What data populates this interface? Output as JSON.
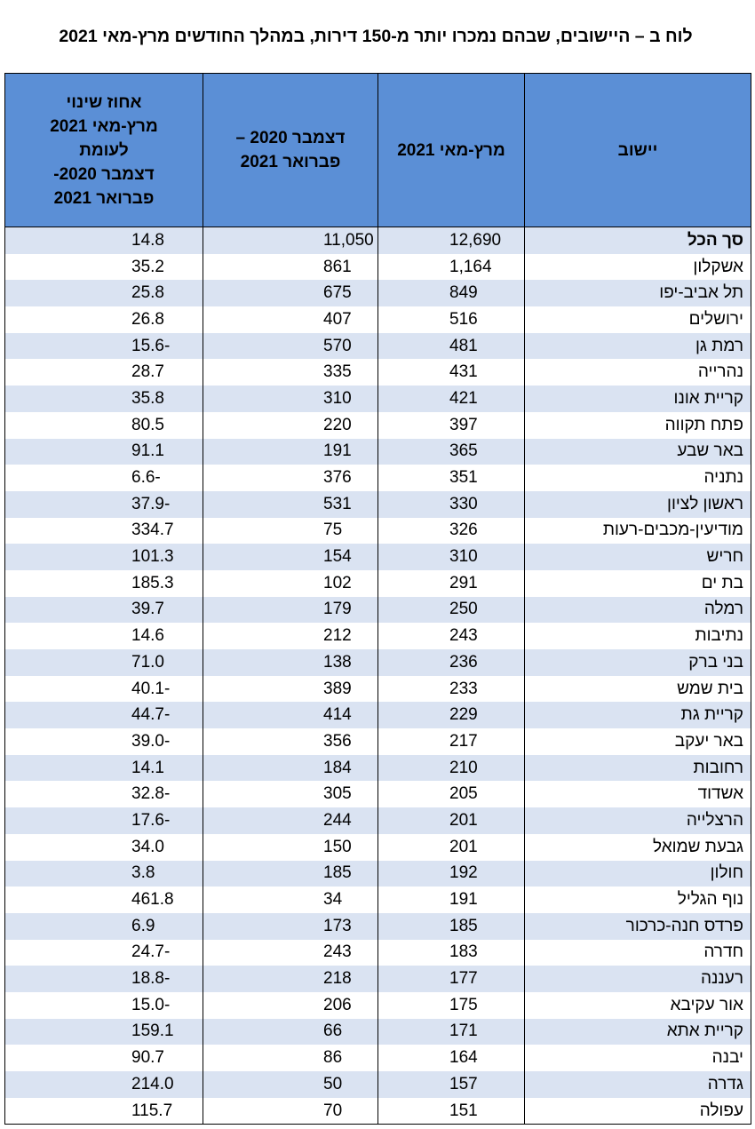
{
  "title": "לוח ב – היישובים, שבהם נמכרו יותר מ-150 דירות, במהלך החודשים מרץ-מאי 2021",
  "table": {
    "headers": [
      [
        "יישוב"
      ],
      [
        "מרץ-מאי 2021"
      ],
      [
        "דצמבר 2020 –",
        "פברואר 2021"
      ],
      [
        "אחוז שינוי",
        "מרץ-מאי 2021",
        "לעומת",
        "דצמבר 2020-",
        "פברואר 2021"
      ]
    ],
    "rows": [
      [
        "סך הכל",
        "12,690",
        "11,050",
        "14.8"
      ],
      [
        "אשקלון",
        "1,164",
        "861",
        "35.2"
      ],
      [
        "תל אביב-יפו",
        "849",
        "675",
        "25.8"
      ],
      [
        "ירושלים",
        "516",
        "407",
        "26.8"
      ],
      [
        "רמת גן",
        "481",
        "570",
        "-15.6"
      ],
      [
        "נהרייה",
        "431",
        "335",
        "28.7"
      ],
      [
        "קריית אונו",
        "421",
        "310",
        "35.8"
      ],
      [
        "פתח תקווה",
        "397",
        "220",
        "80.5"
      ],
      [
        "באר שבע",
        "365",
        "191",
        "91.1"
      ],
      [
        "נתניה",
        "351",
        "376",
        "-6.6"
      ],
      [
        "ראשון לציון",
        "330",
        "531",
        "-37.9"
      ],
      [
        "מודיעין-מכבים-רעות",
        "326",
        "75",
        "334.7"
      ],
      [
        "חריש",
        "310",
        "154",
        "101.3"
      ],
      [
        "בת ים",
        "291",
        "102",
        "185.3"
      ],
      [
        "רמלה",
        "250",
        "179",
        "39.7"
      ],
      [
        "נתיבות",
        "243",
        "212",
        "14.6"
      ],
      [
        "בני ברק",
        "236",
        "138",
        "71.0"
      ],
      [
        "בית שמש",
        "233",
        "389",
        "-40.1"
      ],
      [
        "קריית גת",
        "229",
        "414",
        "-44.7"
      ],
      [
        "באר יעקב",
        "217",
        "356",
        "-39.0"
      ],
      [
        "רחובות",
        "210",
        "184",
        "14.1"
      ],
      [
        "אשדוד",
        "205",
        "305",
        "-32.8"
      ],
      [
        "הרצלייה",
        "201",
        "244",
        "-17.6"
      ],
      [
        "גבעת שמואל",
        "201",
        "150",
        "34.0"
      ],
      [
        "חולון",
        "192",
        "185",
        "3.8"
      ],
      [
        "נוף הגליל",
        "191",
        "34",
        "461.8"
      ],
      [
        "פרדס חנה-כרכור",
        "185",
        "173",
        "6.9"
      ],
      [
        "חדרה",
        "183",
        "243",
        "-24.7"
      ],
      [
        "רעננה",
        "177",
        "218",
        "-18.8"
      ],
      [
        "אור עקיבא",
        "175",
        "206",
        "-15.0"
      ],
      [
        "קריית אתא",
        "171",
        "66",
        "159.1"
      ],
      [
        "יבנה",
        "164",
        "86",
        "90.7"
      ],
      [
        "גדרה",
        "157",
        "50",
        "214.0"
      ],
      [
        "עפולה",
        "151",
        "70",
        "115.7"
      ]
    ]
  }
}
